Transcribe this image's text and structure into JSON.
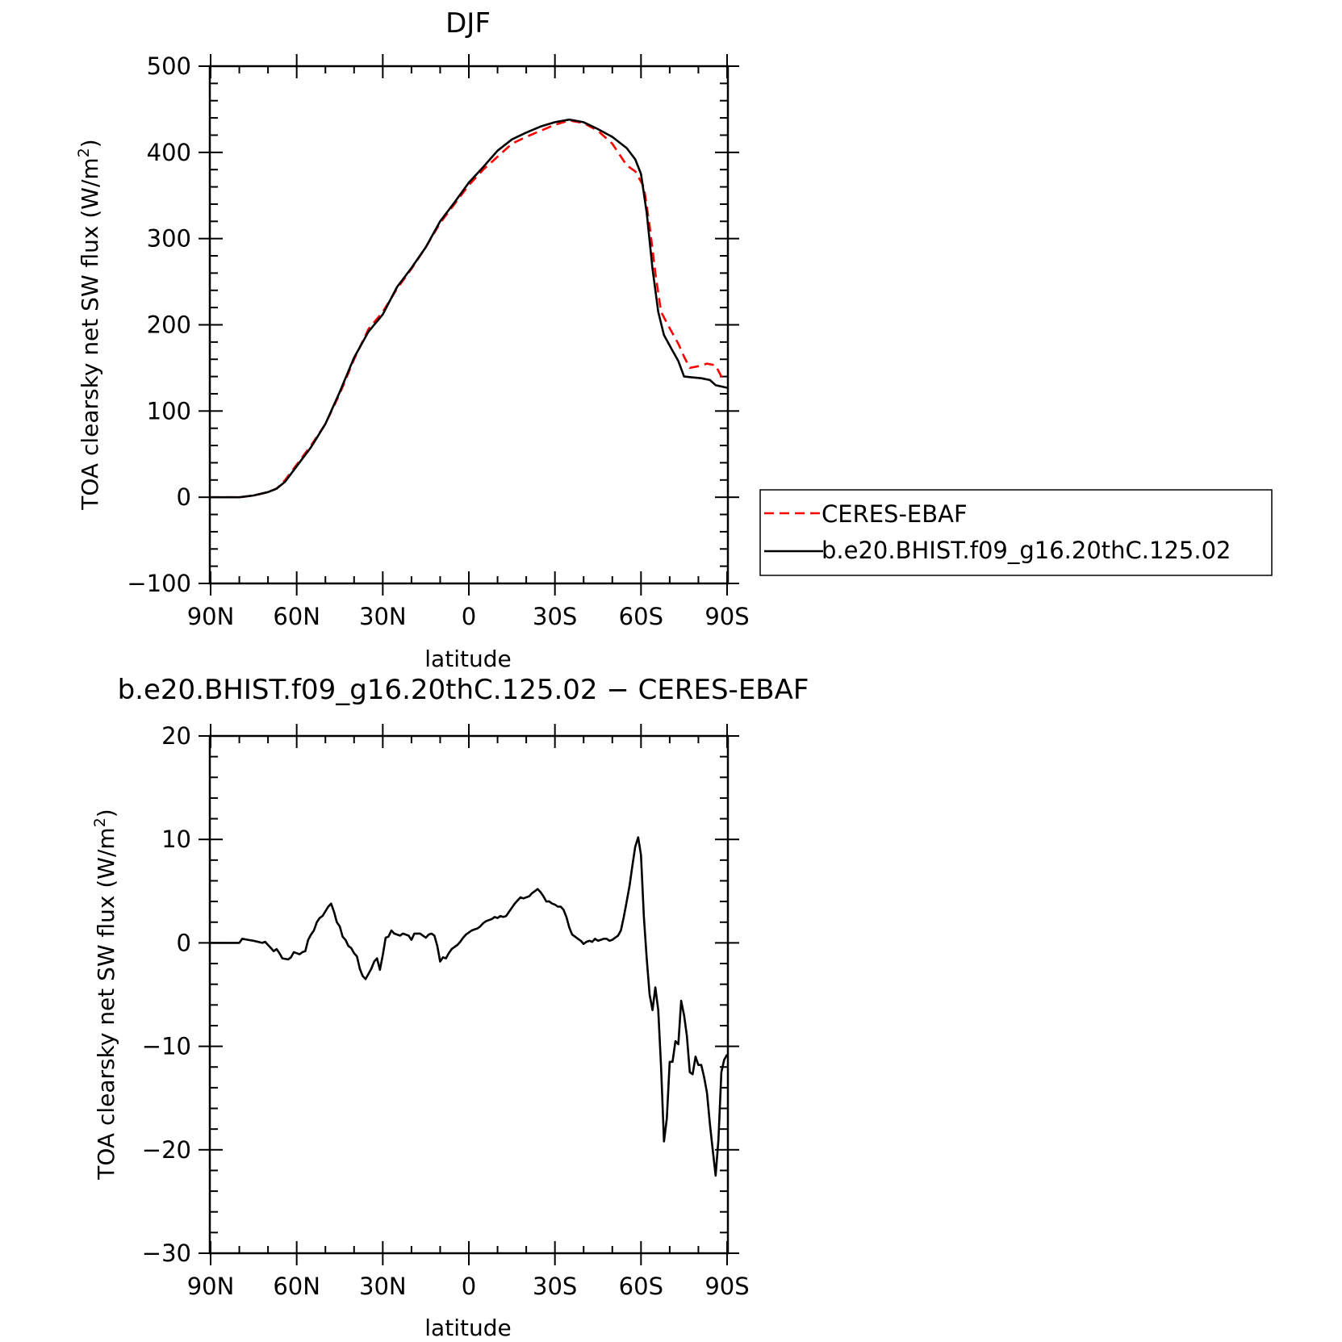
{
  "chart_data": [
    {
      "type": "line",
      "title": "DJF",
      "xlabel": "latitude",
      "ylabel": "TOA clearsky net SW flux (W/m",
      "ylabel_sup": "2",
      "ylabel_close": ")",
      "xlim": [
        -90,
        90
      ],
      "ylim": [
        -100,
        500
      ],
      "xticks": [
        -90,
        -60,
        -30,
        0,
        30,
        60,
        90
      ],
      "xtick_labels": [
        "90N",
        "60N",
        "30N",
        "0",
        "30S",
        "60S",
        "90S"
      ],
      "yticks": [
        -100,
        0,
        100,
        200,
        300,
        400,
        500
      ],
      "ytick_labels": [
        "−100",
        "0",
        "100",
        "200",
        "300",
        "400",
        "500"
      ],
      "legend_position": "right",
      "series": [
        {
          "name": "CERES-EBAF",
          "color": "#ff0000",
          "dash": true,
          "points": [
            [
              -90,
              0
            ],
            [
              -80,
              0
            ],
            [
              -75,
              2
            ],
            [
              -70,
              6
            ],
            [
              -67,
              10
            ],
            [
              -64,
              20
            ],
            [
              -60,
              38
            ],
            [
              -55,
              60
            ],
            [
              -50,
              85
            ],
            [
              -45,
              120
            ],
            [
              -40,
              160
            ],
            [
              -35,
              195
            ],
            [
              -30,
              215
            ],
            [
              -25,
              242
            ],
            [
              -20,
              265
            ],
            [
              -15,
              290
            ],
            [
              -10,
              318
            ],
            [
              -5,
              340
            ],
            [
              0,
              362
            ],
            [
              5,
              380
            ],
            [
              10,
              395
            ],
            [
              15,
              410
            ],
            [
              20,
              418
            ],
            [
              25,
              425
            ],
            [
              30,
              432
            ],
            [
              35,
              437
            ],
            [
              40,
              434
            ],
            [
              45,
              425
            ],
            [
              50,
              410
            ],
            [
              55,
              385
            ],
            [
              58,
              378
            ],
            [
              61,
              360
            ],
            [
              63,
              315
            ],
            [
              65,
              260
            ],
            [
              67,
              215
            ],
            [
              70,
              196
            ],
            [
              73,
              178
            ],
            [
              75,
              163
            ],
            [
              77,
              150
            ],
            [
              80,
              152
            ],
            [
              83,
              155
            ],
            [
              86,
              153
            ],
            [
              88,
              140
            ],
            [
              90,
              138
            ]
          ]
        },
        {
          "name": "b.e20.BHIST.f09_g16.20thC.125.02",
          "color": "#000000",
          "dash": false,
          "points": [
            [
              -90,
              0
            ],
            [
              -80,
              0
            ],
            [
              -75,
              2
            ],
            [
              -70,
              6
            ],
            [
              -67,
              10
            ],
            [
              -64,
              18
            ],
            [
              -60,
              36
            ],
            [
              -55,
              58
            ],
            [
              -50,
              85
            ],
            [
              -45,
              122
            ],
            [
              -40,
              162
            ],
            [
              -35,
              192
            ],
            [
              -30,
              212
            ],
            [
              -25,
              244
            ],
            [
              -20,
              266
            ],
            [
              -15,
              290
            ],
            [
              -10,
              320
            ],
            [
              -5,
              342
            ],
            [
              0,
              365
            ],
            [
              5,
              383
            ],
            [
              10,
              402
            ],
            [
              15,
              415
            ],
            [
              20,
              423
            ],
            [
              25,
              430
            ],
            [
              30,
              435
            ],
            [
              35,
              438
            ],
            [
              40,
              435
            ],
            [
              45,
              427
            ],
            [
              50,
              418
            ],
            [
              55,
              405
            ],
            [
              58,
              392
            ],
            [
              60,
              375
            ],
            [
              62,
              330
            ],
            [
              64,
              265
            ],
            [
              66,
              215
            ],
            [
              68,
              188
            ],
            [
              71,
              170
            ],
            [
              73,
              158
            ],
            [
              75,
              140
            ],
            [
              78,
              139
            ],
            [
              81,
              138
            ],
            [
              84,
              136
            ],
            [
              86,
              130
            ],
            [
              90,
              127
            ]
          ]
        }
      ]
    },
    {
      "type": "line",
      "title": "b.e20.BHIST.f09_g16.20thC.125.02 − CERES-EBAF",
      "xlabel": "latitude",
      "ylabel": "TOA clearsky net SW flux (W/m",
      "ylabel_sup": "2",
      "ylabel_close": ")",
      "xlim": [
        -90,
        90
      ],
      "ylim": [
        -30,
        20
      ],
      "xticks": [
        -90,
        -60,
        -30,
        0,
        30,
        60,
        90
      ],
      "xtick_labels": [
        "90N",
        "60N",
        "30N",
        "0",
        "30S",
        "60S",
        "90S"
      ],
      "yticks": [
        -30,
        -20,
        -10,
        0,
        10,
        20
      ],
      "ytick_labels": [
        "−30",
        "−20",
        "−10",
        "0",
        "10",
        "20"
      ],
      "series": [
        {
          "color": "#000000",
          "dash": false,
          "points": [
            [
              -90,
              0
            ],
            [
              -80,
              0
            ],
            [
              -79,
              0.4
            ],
            [
              -77,
              0.3
            ],
            [
              -75,
              0.2
            ],
            [
              -72,
              0
            ],
            [
              -71,
              0.1
            ],
            [
              -70,
              -0.2
            ],
            [
              -69,
              -0.5
            ],
            [
              -68,
              -0.8
            ],
            [
              -67,
              -0.6
            ],
            [
              -66,
              -1.0
            ],
            [
              -65,
              -1.5
            ],
            [
              -63,
              -1.6
            ],
            [
              -62,
              -1.4
            ],
            [
              -61,
              -0.9
            ],
            [
              -60,
              -1.0
            ],
            [
              -59,
              -1.1
            ],
            [
              -58,
              -0.9
            ],
            [
              -57,
              -0.8
            ],
            [
              -56,
              0.3
            ],
            [
              -55,
              0.8
            ],
            [
              -54,
              1.2
            ],
            [
              -53,
              2.0
            ],
            [
              -52,
              2.4
            ],
            [
              -51,
              2.6
            ],
            [
              -49,
              3.5
            ],
            [
              -48,
              3.8
            ],
            [
              -47,
              3.0
            ],
            [
              -46,
              2.0
            ],
            [
              -45,
              1.6
            ],
            [
              -44,
              0.6
            ],
            [
              -43,
              0.3
            ],
            [
              -42,
              -0.3
            ],
            [
              -41,
              -0.5
            ],
            [
              -40,
              -1.0
            ],
            [
              -39,
              -1.3
            ],
            [
              -38,
              -2.5
            ],
            [
              -37,
              -3.2
            ],
            [
              -36,
              -3.5
            ],
            [
              -35,
              -3.0
            ],
            [
              -34,
              -2.5
            ],
            [
              -33,
              -1.8
            ],
            [
              -32,
              -1.5
            ],
            [
              -31,
              -2.6
            ],
            [
              -30,
              -1.2
            ],
            [
              -29,
              0.5
            ],
            [
              -28,
              0.6
            ],
            [
              -27,
              1.2
            ],
            [
              -26,
              0.9
            ],
            [
              -25,
              0.8
            ],
            [
              -24,
              0.7
            ],
            [
              -23,
              0.9
            ],
            [
              -22,
              0.8
            ],
            [
              -21,
              0.7
            ],
            [
              -20,
              0.3
            ],
            [
              -19,
              0.9
            ],
            [
              -18,
              0.9
            ],
            [
              -17,
              0.9
            ],
            [
              -16,
              0.7
            ],
            [
              -15,
              0.5
            ],
            [
              -14,
              0.8
            ],
            [
              -13,
              0.9
            ],
            [
              -12,
              0.7
            ],
            [
              -11,
              -0.3
            ],
            [
              -10,
              -1.8
            ],
            [
              -9,
              -1.4
            ],
            [
              -8,
              -1.5
            ],
            [
              -7,
              -1.0
            ],
            [
              -6,
              -0.6
            ],
            [
              -5,
              -0.4
            ],
            [
              -4,
              -0.2
            ],
            [
              -3,
              0.1
            ],
            [
              -2,
              0.5
            ],
            [
              -1,
              0.8
            ],
            [
              0,
              1.0
            ],
            [
              1,
              1.2
            ],
            [
              2,
              1.3
            ],
            [
              3,
              1.4
            ],
            [
              4,
              1.6
            ],
            [
              5,
              1.9
            ],
            [
              6,
              2.1
            ],
            [
              7,
              2.2
            ],
            [
              8,
              2.3
            ],
            [
              9,
              2.5
            ],
            [
              10,
              2.4
            ],
            [
              11,
              2.6
            ],
            [
              12,
              2.5
            ],
            [
              13,
              2.6
            ],
            [
              14,
              3.0
            ],
            [
              15,
              3.4
            ],
            [
              16,
              3.8
            ],
            [
              17,
              4.1
            ],
            [
              18,
              4.4
            ],
            [
              19,
              4.3
            ],
            [
              20,
              4.4
            ],
            [
              21,
              4.5
            ],
            [
              22,
              4.8
            ],
            [
              23,
              5.0
            ],
            [
              24,
              5.2
            ],
            [
              25,
              4.9
            ],
            [
              26,
              4.5
            ],
            [
              27,
              4.0
            ],
            [
              28,
              4.0
            ],
            [
              29,
              3.8
            ],
            [
              30,
              3.7
            ],
            [
              31,
              3.5
            ],
            [
              32,
              3.5
            ],
            [
              33,
              3.2
            ],
            [
              34,
              2.5
            ],
            [
              35,
              1.5
            ],
            [
              36,
              0.8
            ],
            [
              37,
              0.6
            ],
            [
              38,
              0.4
            ],
            [
              39,
              0.2
            ],
            [
              40,
              -0.1
            ],
            [
              41,
              0.1
            ],
            [
              42,
              0.2
            ],
            [
              43,
              0.1
            ],
            [
              44,
              0.4
            ],
            [
              45,
              0.2
            ],
            [
              46,
              0.3
            ],
            [
              47,
              0.4
            ],
            [
              48,
              0.4
            ],
            [
              49,
              0.2
            ],
            [
              50,
              0.3
            ],
            [
              51,
              0.5
            ],
            [
              52,
              0.7
            ],
            [
              53,
              1.2
            ],
            [
              54,
              2.5
            ],
            [
              55,
              4.0
            ],
            [
              56,
              5.5
            ],
            [
              57,
              7.5
            ],
            [
              58,
              9.3
            ],
            [
              59,
              10.2
            ],
            [
              60,
              8.5
            ],
            [
              61,
              2.5
            ],
            [
              62,
              -1.5
            ],
            [
              63,
              -5.0
            ],
            [
              64,
              -6.5
            ],
            [
              65,
              -4.3
            ],
            [
              66,
              -6.5
            ],
            [
              67,
              -12.0
            ],
            [
              68,
              -19.2
            ],
            [
              69,
              -17.0
            ],
            [
              70,
              -11.5
            ],
            [
              71,
              -11.5
            ],
            [
              72,
              -9.5
            ],
            [
              73,
              -9.8
            ],
            [
              74,
              -5.6
            ],
            [
              75,
              -7.0
            ],
            [
              76,
              -9.0
            ],
            [
              77,
              -12.5
            ],
            [
              78,
              -12.7
            ],
            [
              79,
              -11.0
            ],
            [
              80,
              -11.8
            ],
            [
              81,
              -11.8
            ],
            [
              82,
              -13.0
            ],
            [
              83,
              -14.5
            ],
            [
              84,
              -17.5
            ],
            [
              85,
              -20.0
            ],
            [
              86,
              -22.5
            ],
            [
              87,
              -19.0
            ],
            [
              88,
              -12.5
            ],
            [
              89,
              -11.3
            ],
            [
              90,
              -10.8
            ]
          ]
        }
      ]
    }
  ]
}
